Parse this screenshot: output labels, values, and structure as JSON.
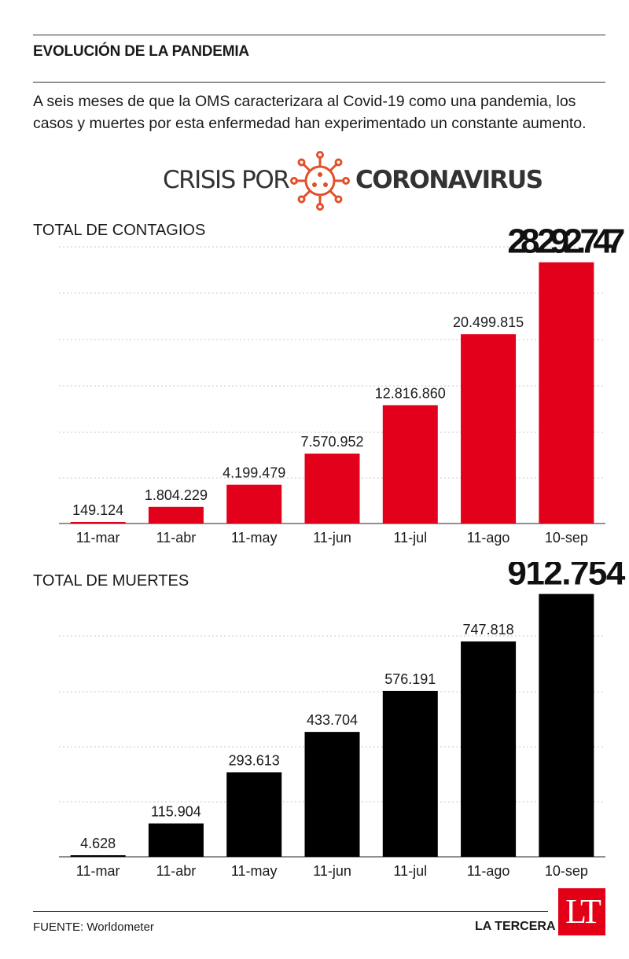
{
  "header": {
    "title": "EVOLUCIÓN DE LA PANDEMIA",
    "intro": "A seis meses de que la OMS caracterizara al Covid-19 como una pandemia, los casos y muertes por esta enfermedad han experimentado un constante aumento."
  },
  "logo": {
    "prefix": "CRISIS POR",
    "suffix": "CORONAVIRUS",
    "icon": "virus-icon",
    "accent_color": "#e2502a"
  },
  "chart_data": [
    {
      "type": "bar",
      "title": "TOTAL DE CONTAGIOS",
      "categories": [
        "11-mar",
        "11-abr",
        "11-may",
        "11-jun",
        "11-jul",
        "11-ago",
        "10-sep"
      ],
      "values": [
        149124,
        1804229,
        4199479,
        7570952,
        12816860,
        20499815,
        28292747
      ],
      "value_labels": [
        "149.124",
        "1.804.229",
        "4.199.479",
        "7.570.952",
        "12.816.860",
        "20.499.815",
        "28.292.747"
      ],
      "ylim": [
        0,
        30000000
      ],
      "grid": true,
      "color": "#e2001a"
    },
    {
      "type": "bar",
      "title": "TOTAL DE MUERTES",
      "categories": [
        "11-mar",
        "11-abr",
        "11-may",
        "11-jun",
        "11-jul",
        "11-ago",
        "10-sep"
      ],
      "values": [
        4628,
        115904,
        293613,
        433704,
        576191,
        747818,
        912754
      ],
      "value_labels": [
        "4.628",
        "115.904",
        "293.613",
        "433.704",
        "576.191",
        "747.818",
        "912.754"
      ],
      "ylim": [
        0,
        950000
      ],
      "grid": true,
      "color": "#000000"
    }
  ],
  "footer": {
    "source": "FUENTE: Worldometer",
    "brand": "LA TERCERA",
    "brand_logo": "LT",
    "brand_color": "#e30016"
  }
}
